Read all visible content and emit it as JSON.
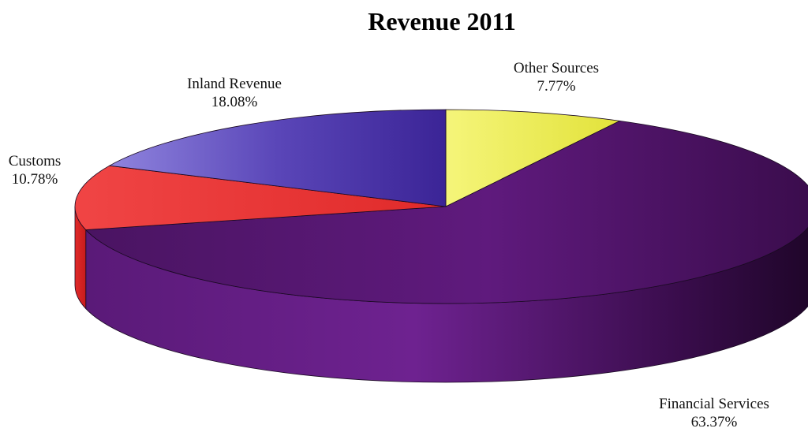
{
  "chart_data": {
    "type": "pie",
    "title": "Revenue 2011",
    "style": "3d",
    "slices": [
      {
        "label": "Other Sources",
        "value": 7.77,
        "display": "7.77%",
        "color": "#f0f055"
      },
      {
        "label": "Financial Services",
        "value": 63.37,
        "display": "63.37%",
        "color": "#5c1a78"
      },
      {
        "label": "Customs",
        "value": 10.78,
        "display": "10.78%",
        "color": "#ee3b3b"
      },
      {
        "label": "Inland Revenue",
        "value": 18.08,
        "display": "18.08%",
        "color": "#4a36a6"
      }
    ]
  }
}
